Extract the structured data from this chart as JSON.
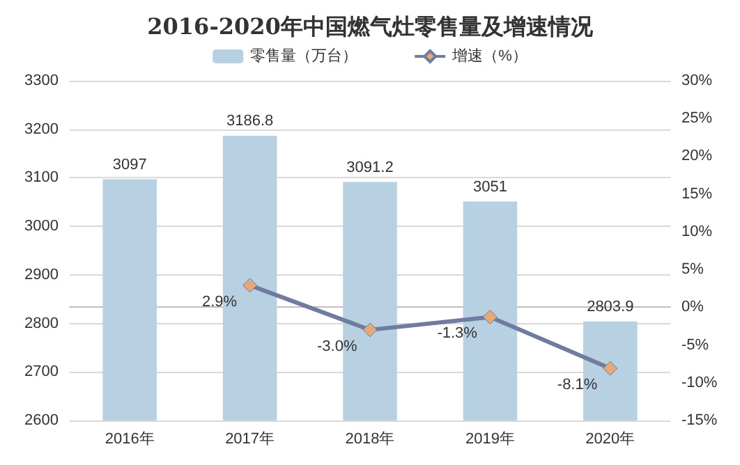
{
  "chart_data": {
    "type": "bar",
    "title": "2016-2020年中国燃气灶零售量及增速情况",
    "categories": [
      "2016年",
      "2017年",
      "2018年",
      "2019年",
      "2020年"
    ],
    "series": [
      {
        "name": "零售量（万台）",
        "color": "#b7d0e2",
        "values": [
          3097,
          3186.8,
          3091.2,
          3051,
          2803.9
        ],
        "data_labels": true
      },
      {
        "name": "增速（%）",
        "type": "line",
        "axis": "y2",
        "color": "#6f7b9f",
        "marker": "diamond",
        "values": [
          null,
          2.9,
          -3.0,
          -1.3,
          -8.1
        ],
        "value_labels": [
          null,
          "2.9%",
          "-3.0%",
          "-1.3%",
          "-8.1%"
        ]
      }
    ],
    "ylim": [
      2600,
      3300
    ],
    "yticks": [
      2600,
      2700,
      2800,
      2900,
      3000,
      3100,
      3200,
      3300
    ],
    "y2lim": [
      -15,
      30
    ],
    "y2ticks": [
      {
        "value": -15,
        "label": "-15%"
      },
      {
        "value": -10,
        "label": "-10%"
      },
      {
        "value": -5,
        "label": "-5%"
      },
      {
        "value": 0,
        "label": "0%"
      },
      {
        "value": 5,
        "label": "5%"
      },
      {
        "value": 10,
        "label": "10%"
      },
      {
        "value": 15,
        "label": "15%"
      },
      {
        "value": 20,
        "label": "20%"
      },
      {
        "value": 25,
        "label": "25%"
      },
      {
        "value": 30,
        "label": "30%"
      }
    ],
    "grid": "y",
    "legend": "top"
  }
}
